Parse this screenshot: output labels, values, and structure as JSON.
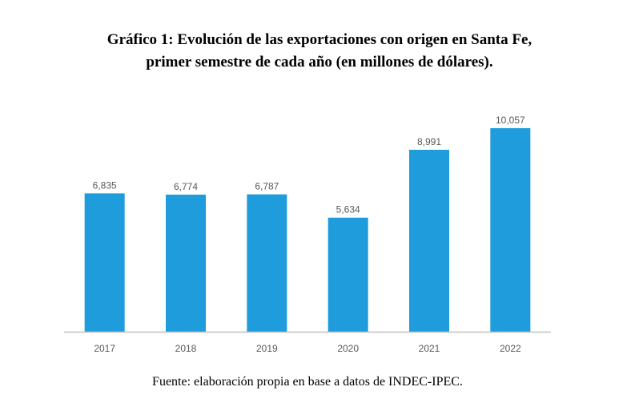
{
  "title_line1": "Gráfico 1: Evolución de las exportaciones con origen en Santa Fe,",
  "title_line2": "primer semestre de cada año (en millones de dólares).",
  "source": "Fuente: elaboración propia en base a datos de INDEC-IPEC.",
  "colors": {
    "bar": "#1f9cdb",
    "axis": "#bfbfbf",
    "tick_label": "#595959",
    "data_label": "#595959"
  },
  "chart_data": {
    "type": "bar",
    "categories": [
      "2017",
      "2018",
      "2019",
      "2020",
      "2021",
      "2022"
    ],
    "values": [
      6835,
      6774,
      6787,
      5634,
      8991,
      10057
    ],
    "data_labels": [
      "6,835",
      "6,774",
      "6,787",
      "5,634",
      "8,991",
      "10,057"
    ],
    "title": "Gráfico 1: Evolución de las exportaciones con origen en Santa Fe, primer semestre de cada año (en millones de dólares).",
    "xlabel": "",
    "ylabel": "",
    "ylim": [
      0,
      10057
    ],
    "grid": false,
    "legend": "none"
  }
}
